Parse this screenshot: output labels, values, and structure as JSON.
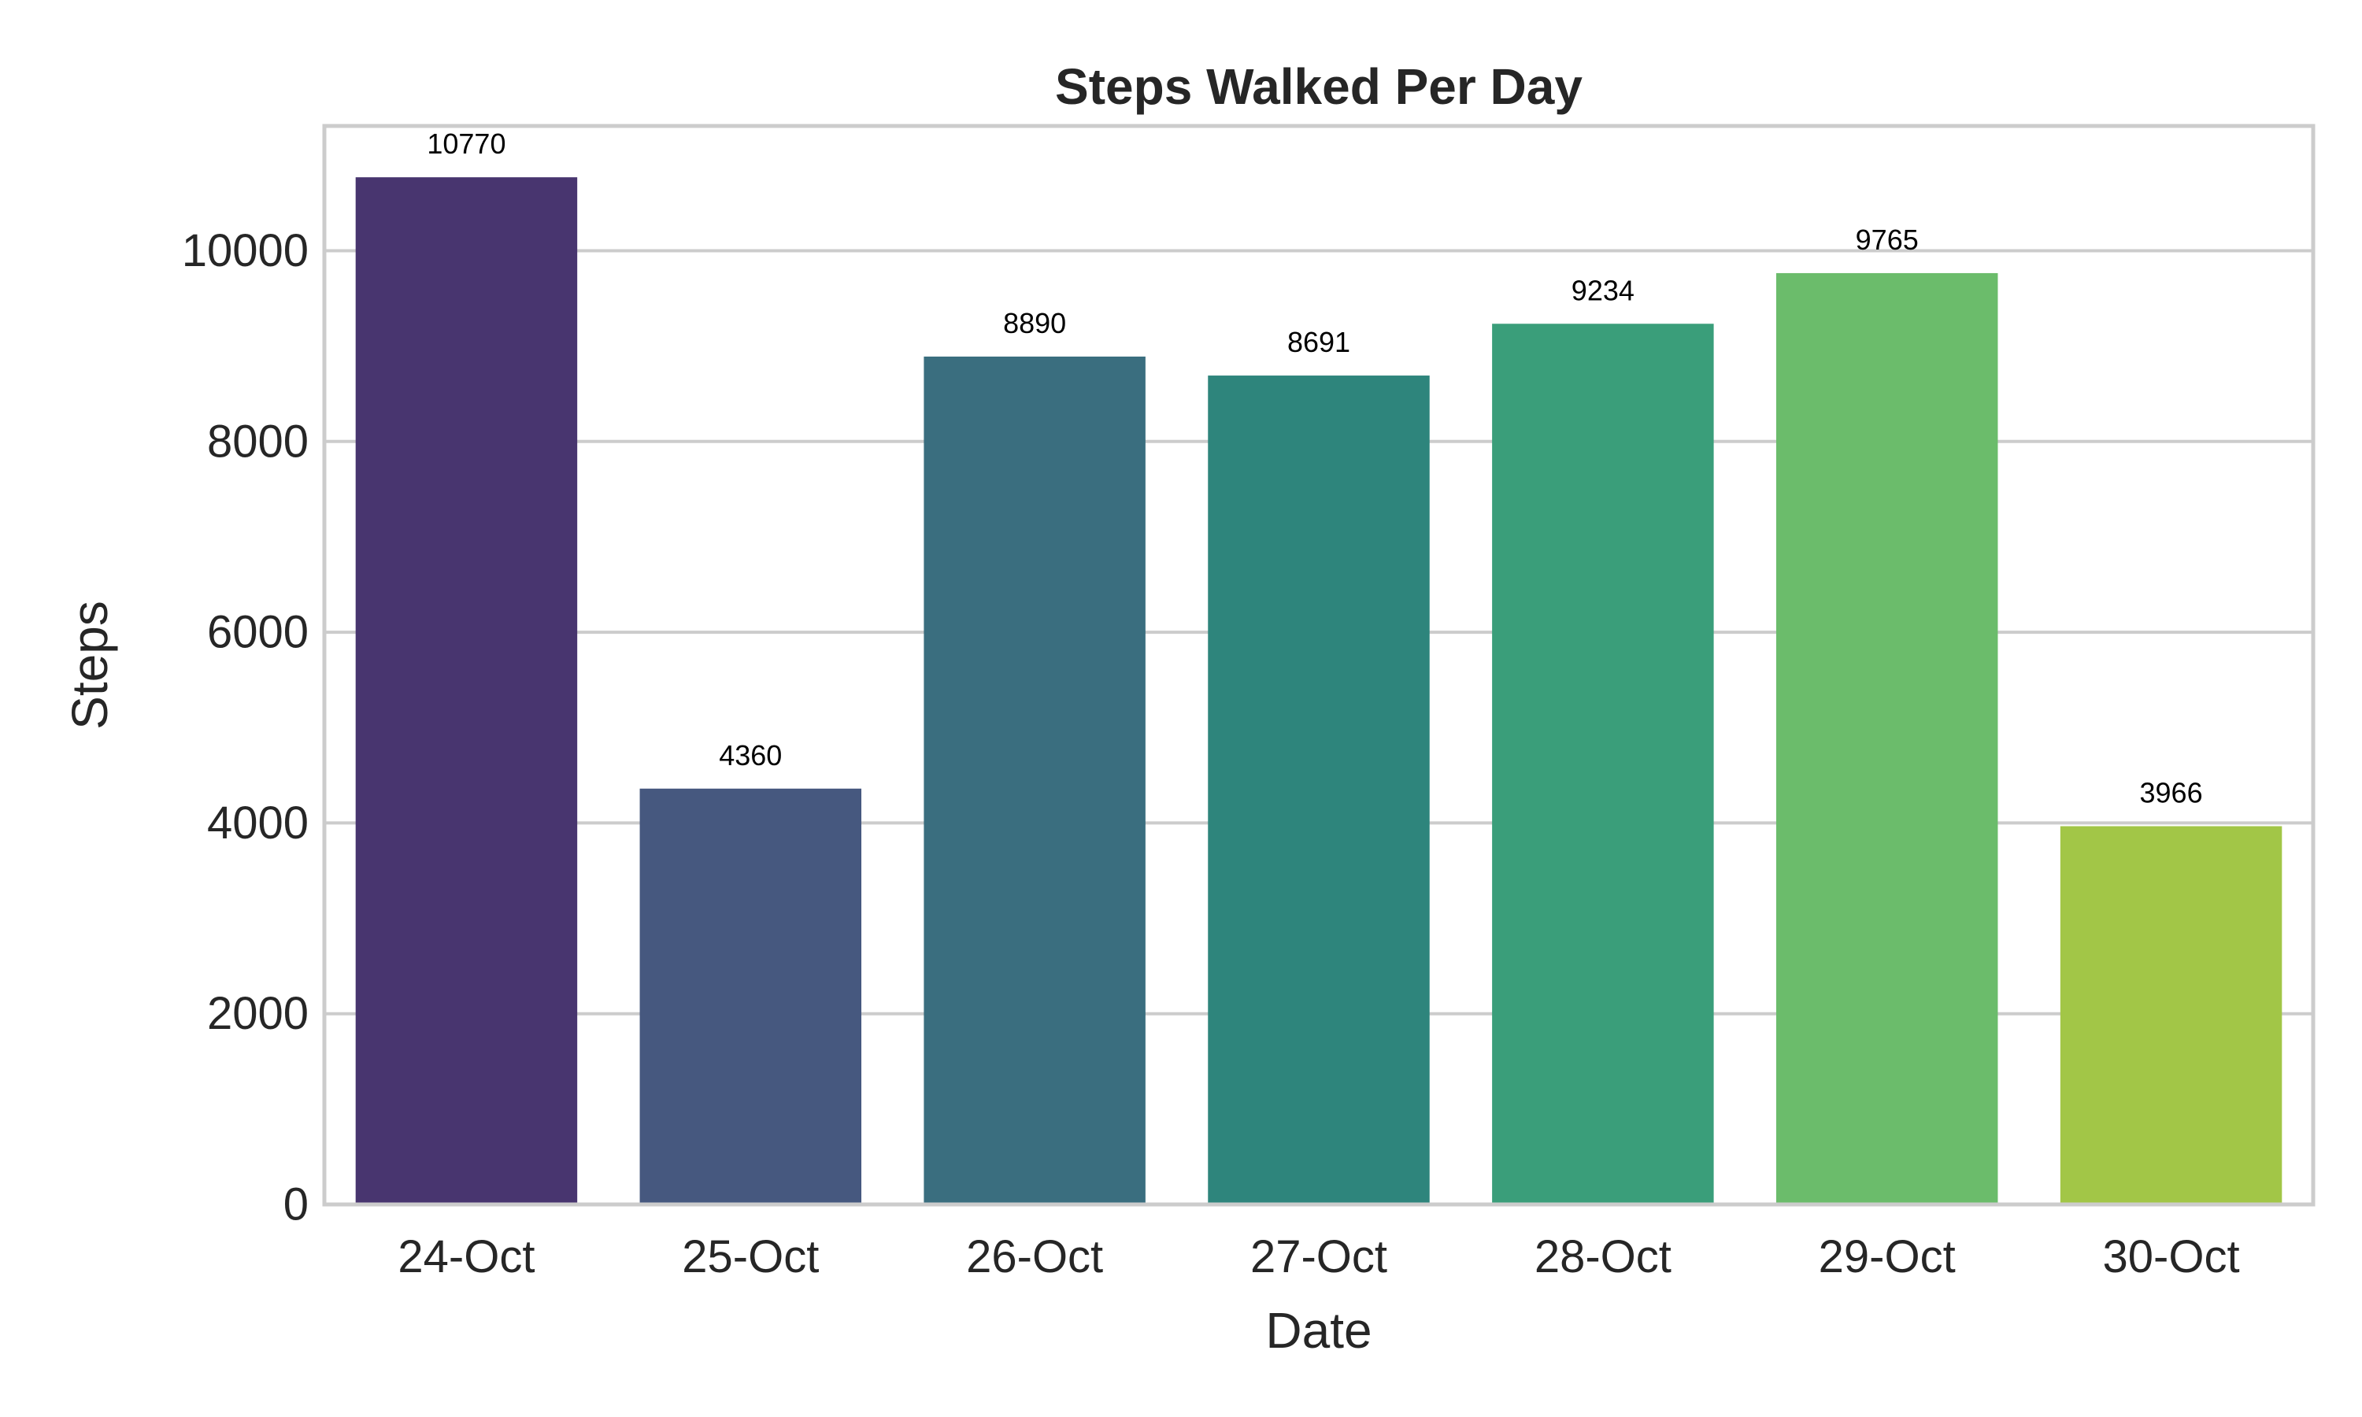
{
  "chart_data": {
    "type": "bar",
    "title": "Steps Walked Per Day",
    "xlabel": "Date",
    "ylabel": "Steps",
    "categories": [
      "24-Oct",
      "25-Oct",
      "26-Oct",
      "27-Oct",
      "28-Oct",
      "29-Oct",
      "30-Oct"
    ],
    "values": [
      10770,
      4360,
      8890,
      8691,
      9234,
      9765,
      3966
    ],
    "value_labels": [
      "10770",
      "4360",
      "8890",
      "8691",
      "9234",
      "9765",
      "3966"
    ],
    "colors": [
      "#48356f",
      "#46587f",
      "#3a6e7f",
      "#2e857c",
      "#3a9e7a",
      "#6bbc6b",
      "#a2c647"
    ],
    "yticks": [
      0,
      2000,
      4000,
      6000,
      8000,
      10000
    ],
    "ytick_labels": [
      "0",
      "2000",
      "4000",
      "6000",
      "8000",
      "10000"
    ],
    "ylim": [
      0,
      11308
    ],
    "grid": true,
    "grid_axis": "y",
    "legend": "none"
  }
}
